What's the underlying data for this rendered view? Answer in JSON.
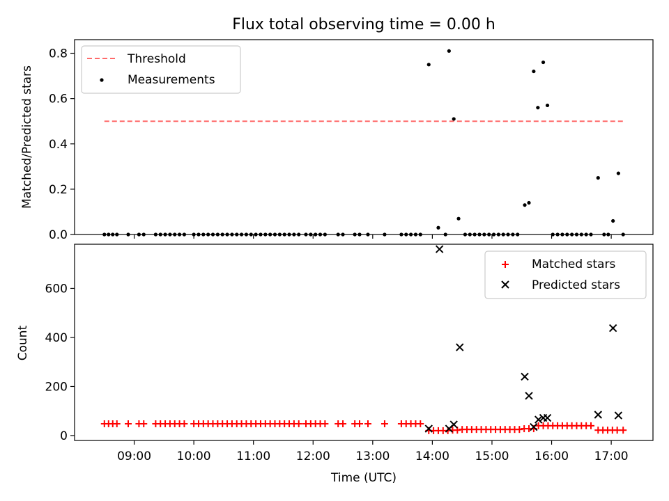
{
  "chart_data": [
    {
      "type": "scatter",
      "title": "Flux total observing time = 0.00 h",
      "xlabel": "",
      "ylabel": "Matched/Predicted stars",
      "x_range_hours": [
        8.0,
        17.7
      ],
      "ylim": [
        0.0,
        0.86
      ],
      "yticks": [
        0.0,
        0.2,
        0.4,
        0.6,
        0.8
      ],
      "ytick_labels": [
        "0.0",
        "0.2",
        "0.4",
        "0.6",
        "0.8"
      ],
      "threshold": {
        "name": "Threshold",
        "value": 0.5,
        "x_range": [
          8.5,
          17.2
        ],
        "color": "#ff6b6b",
        "style": "dashed"
      },
      "legend": {
        "placement": "top-left",
        "entries": [
          "Threshold",
          "Measurements"
        ]
      },
      "series": [
        {
          "name": "Measurements",
          "color": "#000000",
          "marker": "dot",
          "points": [
            {
              "x": 8.5,
              "y": 0
            },
            {
              "x": 8.57,
              "y": 0
            },
            {
              "x": 8.64,
              "y": 0
            },
            {
              "x": 8.71,
              "y": 0
            },
            {
              "x": 8.9,
              "y": 0
            },
            {
              "x": 9.08,
              "y": 0
            },
            {
              "x": 9.16,
              "y": 0
            },
            {
              "x": 9.36,
              "y": 0
            },
            {
              "x": 9.44,
              "y": 0
            },
            {
              "x": 9.52,
              "y": 0
            },
            {
              "x": 9.6,
              "y": 0
            },
            {
              "x": 9.68,
              "y": 0
            },
            {
              "x": 9.76,
              "y": 0
            },
            {
              "x": 9.84,
              "y": 0
            },
            {
              "x": 10.0,
              "y": 0
            },
            {
              "x": 10.08,
              "y": 0
            },
            {
              "x": 10.16,
              "y": 0
            },
            {
              "x": 10.24,
              "y": 0
            },
            {
              "x": 10.32,
              "y": 0
            },
            {
              "x": 10.4,
              "y": 0
            },
            {
              "x": 10.48,
              "y": 0
            },
            {
              "x": 10.56,
              "y": 0
            },
            {
              "x": 10.64,
              "y": 0
            },
            {
              "x": 10.72,
              "y": 0
            },
            {
              "x": 10.8,
              "y": 0
            },
            {
              "x": 10.88,
              "y": 0
            },
            {
              "x": 10.96,
              "y": 0
            },
            {
              "x": 11.04,
              "y": 0
            },
            {
              "x": 11.12,
              "y": 0
            },
            {
              "x": 11.2,
              "y": 0
            },
            {
              "x": 11.28,
              "y": 0
            },
            {
              "x": 11.36,
              "y": 0
            },
            {
              "x": 11.44,
              "y": 0
            },
            {
              "x": 11.52,
              "y": 0
            },
            {
              "x": 11.6,
              "y": 0
            },
            {
              "x": 11.68,
              "y": 0
            },
            {
              "x": 11.76,
              "y": 0
            },
            {
              "x": 11.88,
              "y": 0
            },
            {
              "x": 11.96,
              "y": 0
            },
            {
              "x": 12.04,
              "y": 0
            },
            {
              "x": 12.12,
              "y": 0
            },
            {
              "x": 12.2,
              "y": 0
            },
            {
              "x": 12.42,
              "y": 0
            },
            {
              "x": 12.5,
              "y": 0
            },
            {
              "x": 12.7,
              "y": 0
            },
            {
              "x": 12.78,
              "y": 0
            },
            {
              "x": 12.92,
              "y": 0
            },
            {
              "x": 13.2,
              "y": 0
            },
            {
              "x": 13.48,
              "y": 0
            },
            {
              "x": 13.56,
              "y": 0
            },
            {
              "x": 13.64,
              "y": 0
            },
            {
              "x": 13.72,
              "y": 0
            },
            {
              "x": 13.8,
              "y": 0
            },
            {
              "x": 13.94,
              "y": 0.75
            },
            {
              "x": 14.1,
              "y": 0.03
            },
            {
              "x": 14.22,
              "y": 0
            },
            {
              "x": 14.28,
              "y": 0.81
            },
            {
              "x": 14.36,
              "y": 0.51
            },
            {
              "x": 14.44,
              "y": 0.07
            },
            {
              "x": 14.55,
              "y": 0
            },
            {
              "x": 14.63,
              "y": 0
            },
            {
              "x": 14.71,
              "y": 0
            },
            {
              "x": 14.79,
              "y": 0
            },
            {
              "x": 14.87,
              "y": 0
            },
            {
              "x": 14.95,
              "y": 0
            },
            {
              "x": 15.03,
              "y": 0
            },
            {
              "x": 15.11,
              "y": 0
            },
            {
              "x": 15.19,
              "y": 0
            },
            {
              "x": 15.27,
              "y": 0
            },
            {
              "x": 15.35,
              "y": 0
            },
            {
              "x": 15.43,
              "y": 0
            },
            {
              "x": 15.55,
              "y": 0.13
            },
            {
              "x": 15.62,
              "y": 0.14
            },
            {
              "x": 15.7,
              "y": 0.72
            },
            {
              "x": 15.77,
              "y": 0.56
            },
            {
              "x": 15.86,
              "y": 0.76
            },
            {
              "x": 15.93,
              "y": 0.57
            },
            {
              "x": 16.02,
              "y": 0
            },
            {
              "x": 16.1,
              "y": 0
            },
            {
              "x": 16.18,
              "y": 0
            },
            {
              "x": 16.26,
              "y": 0
            },
            {
              "x": 16.34,
              "y": 0
            },
            {
              "x": 16.42,
              "y": 0
            },
            {
              "x": 16.5,
              "y": 0
            },
            {
              "x": 16.58,
              "y": 0
            },
            {
              "x": 16.66,
              "y": 0
            },
            {
              "x": 16.78,
              "y": 0.25
            },
            {
              "x": 16.88,
              "y": 0
            },
            {
              "x": 16.95,
              "y": 0
            },
            {
              "x": 17.03,
              "y": 0.06
            },
            {
              "x": 17.12,
              "y": 0.27
            },
            {
              "x": 17.2,
              "y": 0
            }
          ]
        }
      ]
    },
    {
      "type": "scatter",
      "title": "",
      "xlabel": "Time (UTC)",
      "ylabel": "Count",
      "x_range_hours": [
        8.0,
        17.7
      ],
      "ylim": [
        -20,
        780
      ],
      "yticks": [
        0,
        200,
        400,
        600
      ],
      "ytick_labels": [
        "0",
        "200",
        "400",
        "600"
      ],
      "xticks": [
        9,
        10,
        11,
        12,
        13,
        14,
        15,
        16,
        17
      ],
      "xtick_labels": [
        "09:00",
        "10:00",
        "11:00",
        "12:00",
        "13:00",
        "14:00",
        "15:00",
        "16:00",
        "17:00"
      ],
      "legend": {
        "placement": "top-right",
        "entries": [
          "Matched stars",
          "Predicted stars"
        ]
      },
      "series": [
        {
          "name": "Matched stars",
          "color": "#ff0000",
          "marker": "plus",
          "points": [
            {
              "x": 8.5,
              "y": 48
            },
            {
              "x": 8.57,
              "y": 48
            },
            {
              "x": 8.64,
              "y": 48
            },
            {
              "x": 8.71,
              "y": 48
            },
            {
              "x": 8.9,
              "y": 48
            },
            {
              "x": 9.08,
              "y": 48
            },
            {
              "x": 9.16,
              "y": 48
            },
            {
              "x": 9.36,
              "y": 48
            },
            {
              "x": 9.44,
              "y": 48
            },
            {
              "x": 9.52,
              "y": 48
            },
            {
              "x": 9.6,
              "y": 48
            },
            {
              "x": 9.68,
              "y": 48
            },
            {
              "x": 9.76,
              "y": 48
            },
            {
              "x": 9.84,
              "y": 48
            },
            {
              "x": 10.0,
              "y": 48
            },
            {
              "x": 10.08,
              "y": 48
            },
            {
              "x": 10.16,
              "y": 48
            },
            {
              "x": 10.24,
              "y": 48
            },
            {
              "x": 10.32,
              "y": 48
            },
            {
              "x": 10.4,
              "y": 48
            },
            {
              "x": 10.48,
              "y": 48
            },
            {
              "x": 10.56,
              "y": 48
            },
            {
              "x": 10.64,
              "y": 48
            },
            {
              "x": 10.72,
              "y": 48
            },
            {
              "x": 10.8,
              "y": 48
            },
            {
              "x": 10.88,
              "y": 48
            },
            {
              "x": 10.96,
              "y": 48
            },
            {
              "x": 11.04,
              "y": 48
            },
            {
              "x": 11.12,
              "y": 48
            },
            {
              "x": 11.2,
              "y": 48
            },
            {
              "x": 11.28,
              "y": 48
            },
            {
              "x": 11.36,
              "y": 48
            },
            {
              "x": 11.44,
              "y": 48
            },
            {
              "x": 11.52,
              "y": 48
            },
            {
              "x": 11.6,
              "y": 48
            },
            {
              "x": 11.68,
              "y": 48
            },
            {
              "x": 11.76,
              "y": 48
            },
            {
              "x": 11.88,
              "y": 48
            },
            {
              "x": 11.96,
              "y": 48
            },
            {
              "x": 12.04,
              "y": 48
            },
            {
              "x": 12.12,
              "y": 48
            },
            {
              "x": 12.2,
              "y": 48
            },
            {
              "x": 12.42,
              "y": 48
            },
            {
              "x": 12.5,
              "y": 48
            },
            {
              "x": 12.7,
              "y": 48
            },
            {
              "x": 12.78,
              "y": 48
            },
            {
              "x": 12.92,
              "y": 48
            },
            {
              "x": 13.2,
              "y": 48
            },
            {
              "x": 13.48,
              "y": 48
            },
            {
              "x": 13.56,
              "y": 48
            },
            {
              "x": 13.64,
              "y": 48
            },
            {
              "x": 13.72,
              "y": 48
            },
            {
              "x": 13.8,
              "y": 48
            },
            {
              "x": 13.94,
              "y": 20
            },
            {
              "x": 14.02,
              "y": 20
            },
            {
              "x": 14.1,
              "y": 20
            },
            {
              "x": 14.18,
              "y": 20
            },
            {
              "x": 14.26,
              "y": 20
            },
            {
              "x": 14.34,
              "y": 22
            },
            {
              "x": 14.42,
              "y": 22
            },
            {
              "x": 14.5,
              "y": 25
            },
            {
              "x": 14.58,
              "y": 25
            },
            {
              "x": 14.66,
              "y": 25
            },
            {
              "x": 14.74,
              "y": 25
            },
            {
              "x": 14.82,
              "y": 25
            },
            {
              "x": 14.9,
              "y": 25
            },
            {
              "x": 14.98,
              "y": 25
            },
            {
              "x": 15.06,
              "y": 25
            },
            {
              "x": 15.14,
              "y": 25
            },
            {
              "x": 15.22,
              "y": 25
            },
            {
              "x": 15.3,
              "y": 25
            },
            {
              "x": 15.38,
              "y": 25
            },
            {
              "x": 15.46,
              "y": 25
            },
            {
              "x": 15.54,
              "y": 28
            },
            {
              "x": 15.62,
              "y": 28
            },
            {
              "x": 15.7,
              "y": 28
            },
            {
              "x": 15.78,
              "y": 40
            },
            {
              "x": 15.86,
              "y": 40
            },
            {
              "x": 15.94,
              "y": 40
            },
            {
              "x": 16.02,
              "y": 40
            },
            {
              "x": 16.1,
              "y": 40
            },
            {
              "x": 16.18,
              "y": 40
            },
            {
              "x": 16.26,
              "y": 40
            },
            {
              "x": 16.34,
              "y": 40
            },
            {
              "x": 16.42,
              "y": 40
            },
            {
              "x": 16.5,
              "y": 40
            },
            {
              "x": 16.58,
              "y": 40
            },
            {
              "x": 16.66,
              "y": 40
            },
            {
              "x": 16.78,
              "y": 22
            },
            {
              "x": 16.86,
              "y": 22
            },
            {
              "x": 16.94,
              "y": 22
            },
            {
              "x": 17.02,
              "y": 22
            },
            {
              "x": 17.1,
              "y": 22
            },
            {
              "x": 17.2,
              "y": 22
            }
          ]
        },
        {
          "name": "Predicted stars",
          "color": "#000000",
          "marker": "x",
          "points": [
            {
              "x": 13.94,
              "y": 28
            },
            {
              "x": 14.12,
              "y": 760
            },
            {
              "x": 14.28,
              "y": 28
            },
            {
              "x": 14.36,
              "y": 45
            },
            {
              "x": 14.46,
              "y": 360
            },
            {
              "x": 15.55,
              "y": 240
            },
            {
              "x": 15.62,
              "y": 162
            },
            {
              "x": 15.7,
              "y": 35
            },
            {
              "x": 15.78,
              "y": 65
            },
            {
              "x": 15.86,
              "y": 72
            },
            {
              "x": 15.93,
              "y": 72
            },
            {
              "x": 16.78,
              "y": 85
            },
            {
              "x": 17.03,
              "y": 438
            },
            {
              "x": 17.12,
              "y": 82
            }
          ]
        }
      ]
    }
  ]
}
